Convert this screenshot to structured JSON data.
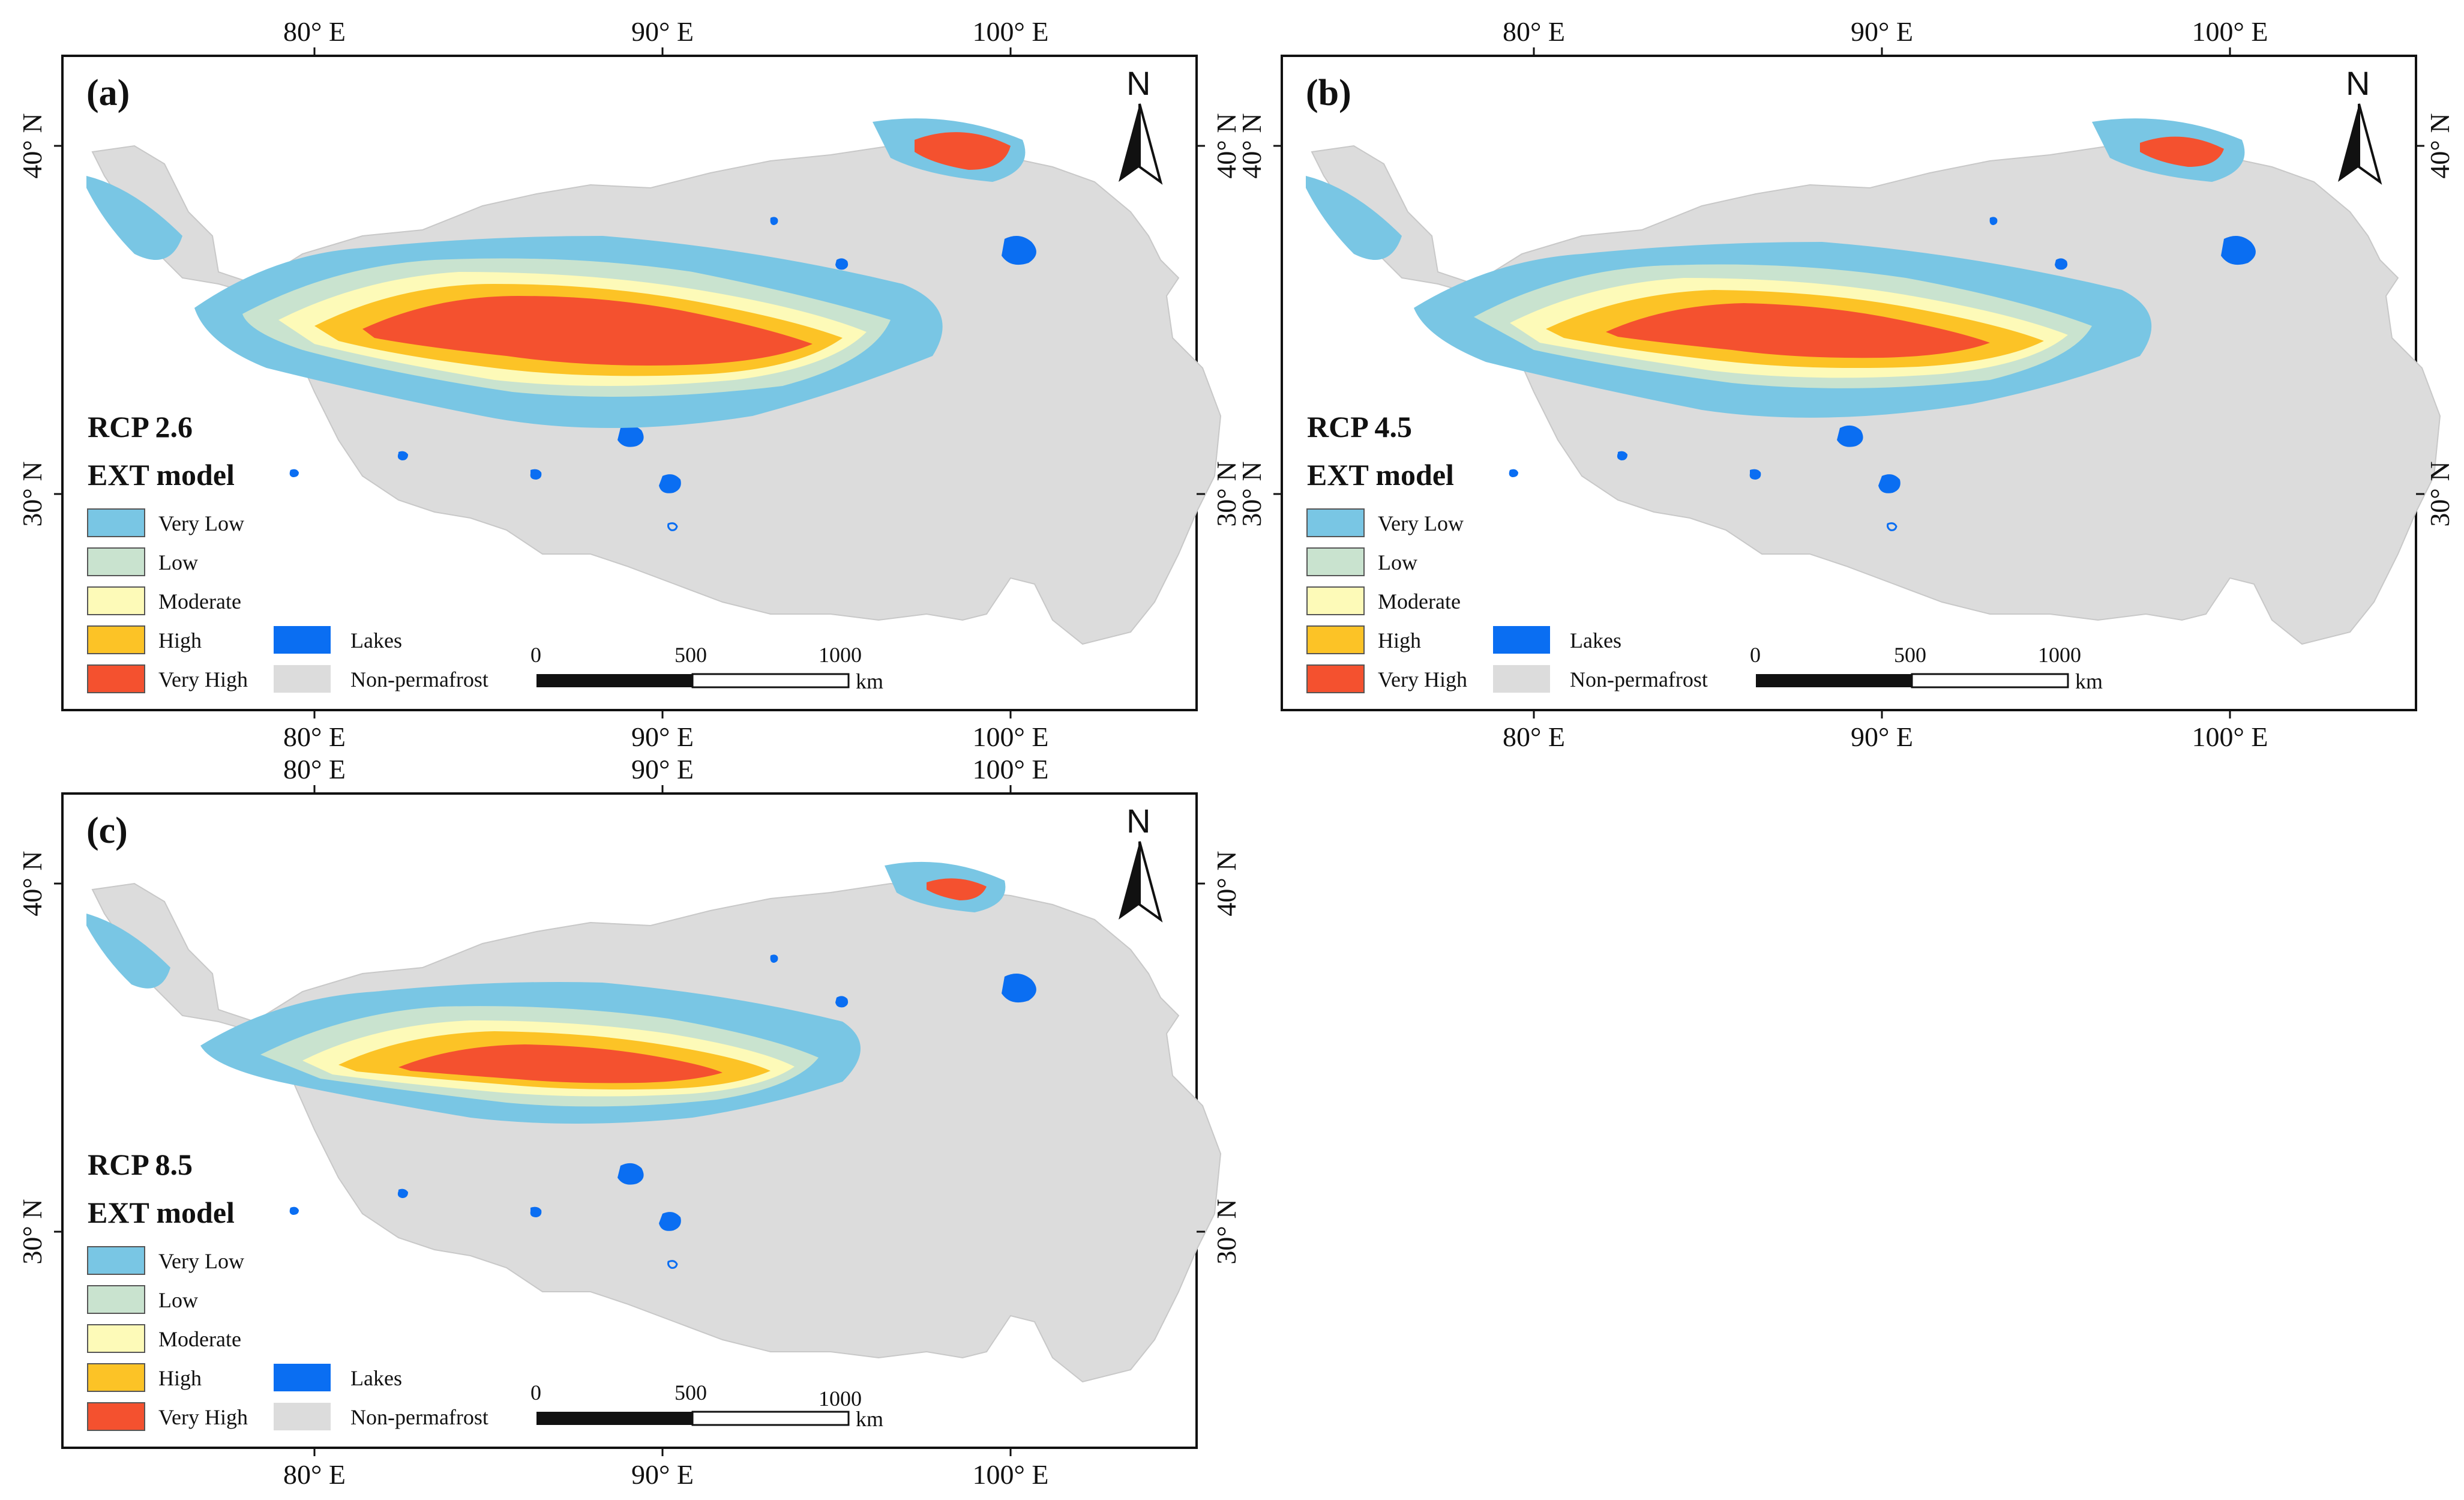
{
  "figure": {
    "x_ticks": [
      "80° E",
      "90° E",
      "100° E"
    ],
    "y_ticks": [
      "40° N",
      "30° N"
    ],
    "north_label": "N",
    "legend": {
      "classes": [
        {
          "label": "Very Low",
          "color": "#79c6e4"
        },
        {
          "label": "Low",
          "color": "#c9e3cf"
        },
        {
          "label": "Moderate",
          "color": "#fdfab8"
        },
        {
          "label": "High",
          "color": "#fcc326"
        },
        {
          "label": "Very High",
          "color": "#f4512f"
        }
      ],
      "lakes": {
        "label": "Lakes",
        "color": "#0a6ef2"
      },
      "nonpermafrost": {
        "label": "Non-permafrost",
        "color": "#dcdcdc"
      }
    },
    "scalebar": {
      "labels": [
        "0",
        "500",
        "1000"
      ],
      "unit": "km"
    }
  },
  "panels": [
    {
      "letter": "(a)",
      "scenario": "RCP 2.6",
      "model": "EXT model"
    },
    {
      "letter": "(b)",
      "scenario": "RCP 4.5",
      "model": "EXT model"
    },
    {
      "letter": "(c)",
      "scenario": "RCP 8.5",
      "model": "EXT model"
    }
  ]
}
